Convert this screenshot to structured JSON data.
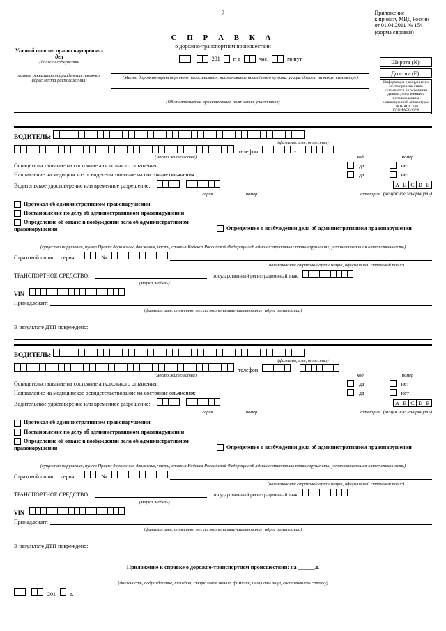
{
  "page_number": "2",
  "attachment": {
    "l1": "Приложение",
    "l2": "к приказу МВД России",
    "l3": "от 01.04.2011 № 154",
    "l4": "(форма справки)"
  },
  "title": {
    "main": "С П Р А В К А",
    "sub": "о дорожно-транспортном происшествии"
  },
  "stamp": {
    "header": "Угловой штамп органа внутренних дел",
    "hint1": "(должен содержать",
    "hint2": "полные реквизиты подразделения, включая адрес места расположения)"
  },
  "coords": {
    "lat": "Широта (N):",
    "lon": "Долгота (E):",
    "note": "Информация о координатах места происшествия указывается на основании данных, полученных с использованием навигационной аппаратуры ГЛОНАСС или ГЛОНАСС/GPS"
  },
  "dateline": {
    "year_prefix": "201",
    "year_suffix": "г. в",
    "hour": "час.",
    "min": "минут",
    "place_hint": "(Место дорожно-транспортного происшествия, наименование населённого пункта, улицы, дороги, на каком километре)",
    "circ_hint": "(Обстоятельства происшествия, количество участников)"
  },
  "driver": {
    "label": "ВОДИТЕЛЬ:",
    "fio_hint": "(фамилия, имя, отчество)",
    "phone": "телефон",
    "addr_hint": "(место жительства)",
    "code_hint": "код",
    "num_hint": "номер",
    "alco": "Освидетельствование на состояние алкогольного опьянения:",
    "med": "Направление на медицинское освидетельствование на состояние опьянения:",
    "yes": "да",
    "no": "нет",
    "license": "Водительское удостоверение или временное разрешение:",
    "series": "серия",
    "number": "номер",
    "category": "категория",
    "cats": [
      "A",
      "B",
      "C",
      "D",
      "E"
    ],
    "cat_hint": "(ненужное зачеркнуть)",
    "chk1": "Протокол об административном правонарушении",
    "chk2": "Постановление по делу об административном правонарушении",
    "chk3": "Определение об отказе в возбуждении дела об административном правонарушении",
    "chk4": "Определение о возбуждении дела об административном правонарушении",
    "violation_hint": "(существо нарушения, пункт Правил дорожного движения, часть, статья Кодекса Российской Федерации об административных правонарушениях, устанавливающая ответственность)",
    "policy": "Страховой полис:",
    "policy_series": "серия",
    "policy_no": "№",
    "insurer_hint": "(наименование страховой организации, оформившей страховой полис)",
    "vehicle": "ТРАНСПОРТНОЕ СРЕДСТВО:",
    "model_hint": "(марка, модель)",
    "regplate": "государственный регистрационный знак",
    "vin": "VIN",
    "owns": "Принадлежит:",
    "owner_hint": "(фамилия, имя, отчество, место жительства/наименование, адрес организации)",
    "damage": "В результате ДТП повреждено:"
  },
  "footer": {
    "appendix": "Приложение к справке о дорожно-транспортном происшествии: на ______л.",
    "signer_hint": "(должность, подразделение, телефон, специальное звание, фамилия, инициалы лица, составившего справку)",
    "year_prefix": "201",
    "year_suffix": "г."
  }
}
